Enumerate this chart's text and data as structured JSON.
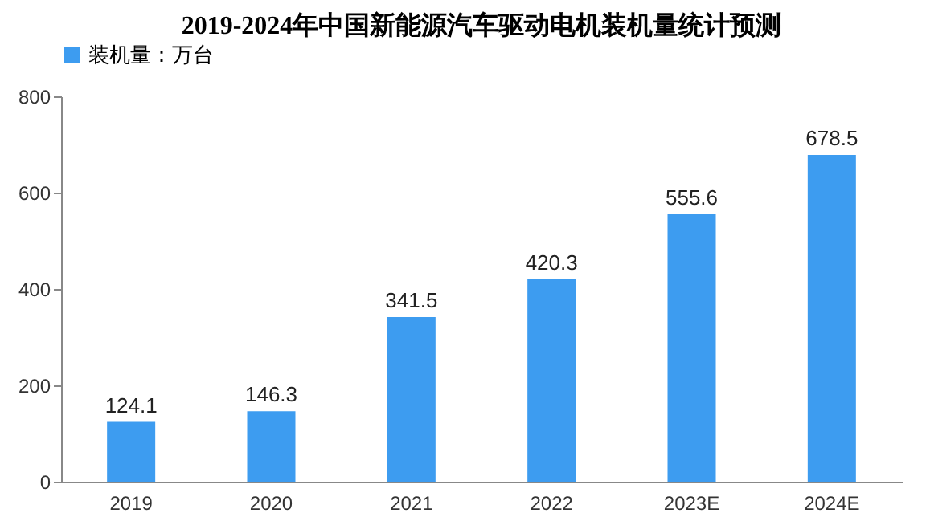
{
  "chart_data": {
    "type": "bar",
    "title": "2019-2024年中国新能源汽车驱动电机装机量统计预测",
    "categories": [
      "2019",
      "2020",
      "2021",
      "2022",
      "2023E",
      "2024E"
    ],
    "series": [
      {
        "name": "装机量：万台",
        "color": "#3d9cf0",
        "values": [
          124.1,
          146.3,
          341.5,
          420.3,
          555.6,
          678.5
        ]
      }
    ],
    "ylim": [
      0,
      800
    ],
    "yticks": [
      0,
      200,
      400,
      600,
      800
    ],
    "grid": false,
    "legend": "top",
    "data_labels": true
  }
}
